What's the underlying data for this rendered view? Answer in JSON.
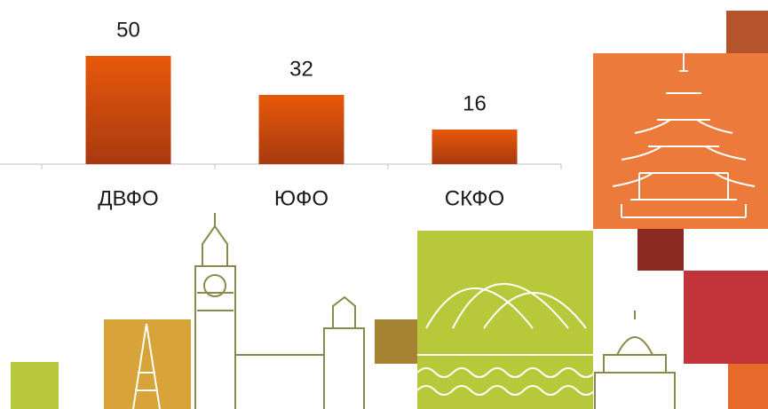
{
  "chart_data": {
    "type": "bar",
    "categories": [
      "ДВФО",
      "ЮФО",
      "СКФО"
    ],
    "values": [
      50,
      32,
      16
    ],
    "color": "#d9530f"
  }
}
